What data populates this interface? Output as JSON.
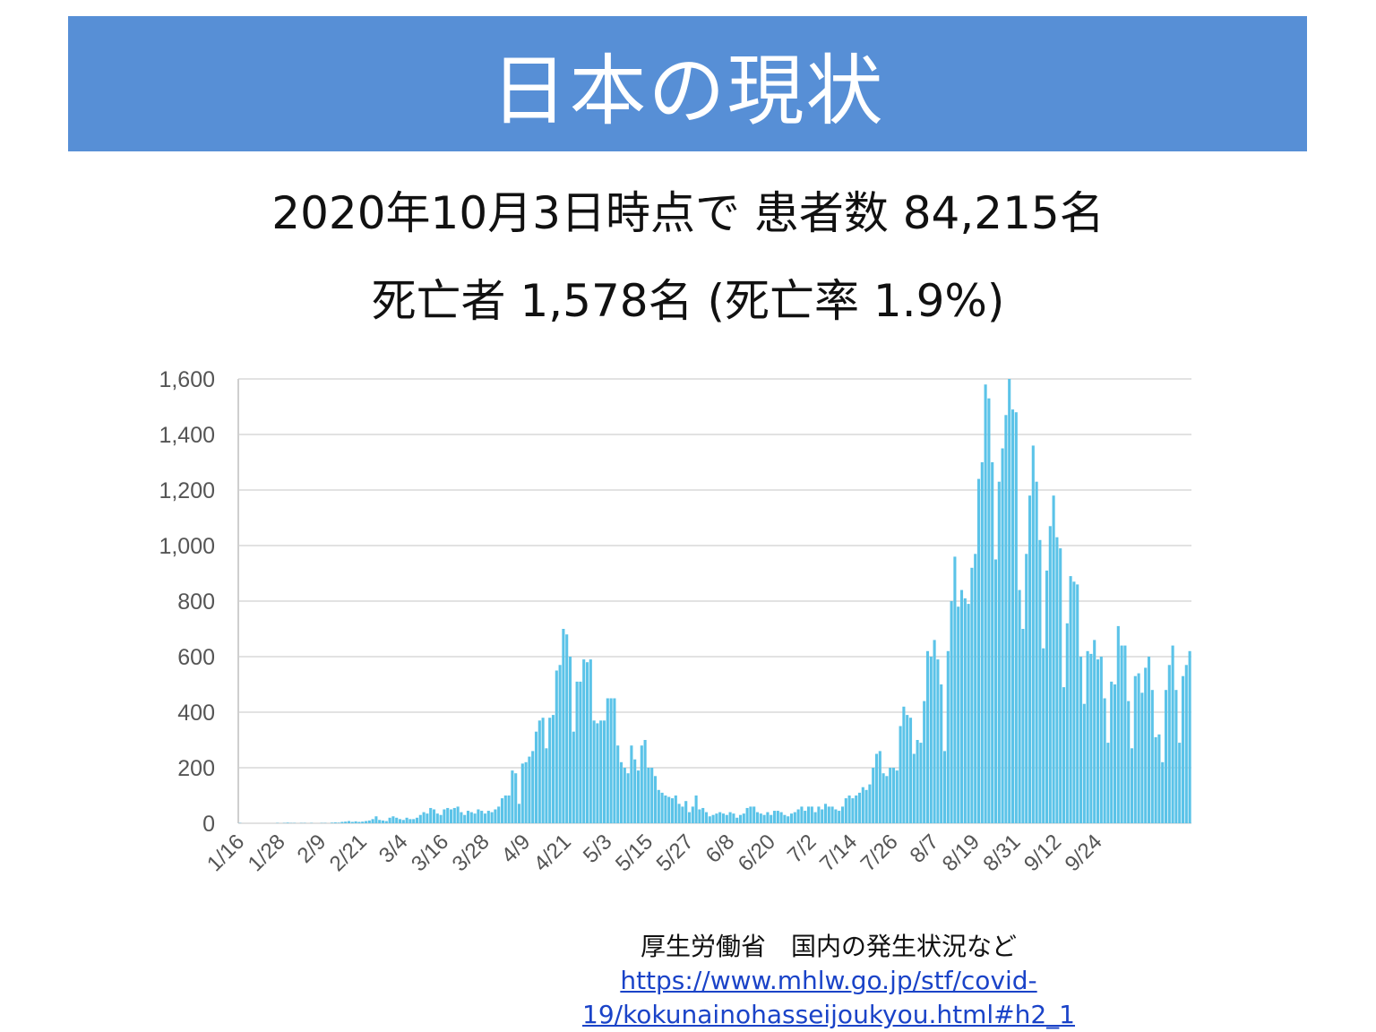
{
  "title": "日本の現状",
  "summary": {
    "line1": "2020年10月3日時点で 患者数 84,215名",
    "line2": "死亡者 1,578名 (死亡率 1.9%)"
  },
  "source": {
    "label": "厚生労働省　国内の発生状況など",
    "url_line1": "https://www.mhlw.go.jp/stf/covid-",
    "url_line2": "19/kokunainohasseijoukyou.html#h2_1"
  },
  "colors": {
    "header_bg": "#578fd6",
    "bar": "#5bc3e8",
    "link": "#1a43c8"
  },
  "chart_data": {
    "type": "bar",
    "title": "",
    "xlabel": "",
    "ylabel": "",
    "ylim": [
      0,
      1600
    ],
    "yticks": [
      0,
      200,
      400,
      600,
      800,
      1000,
      1200,
      1400,
      1600
    ],
    "ytick_labels": [
      "0",
      "200",
      "400",
      "600",
      "800",
      "1,000",
      "1,200",
      "1,400",
      "1,600"
    ],
    "xtick_labels": [
      "1/16",
      "1/28",
      "2/9",
      "2/21",
      "3/4",
      "3/16",
      "3/28",
      "4/9",
      "4/21",
      "5/3",
      "5/15",
      "5/27",
      "6/8",
      "6/20",
      "7/2",
      "7/14",
      "7/26",
      "8/7",
      "8/19",
      "8/31",
      "9/12",
      "9/24"
    ],
    "xtick_every": 12,
    "grid": true,
    "start_date": "1/16",
    "values": [
      1,
      0,
      0,
      0,
      0,
      0,
      0,
      0,
      0,
      0,
      0,
      1,
      0,
      1,
      2,
      1,
      1,
      0,
      1,
      1,
      0,
      1,
      0,
      0,
      1,
      1,
      0,
      2,
      3,
      2,
      5,
      6,
      8,
      5,
      7,
      5,
      6,
      8,
      10,
      15,
      25,
      12,
      10,
      8,
      20,
      25,
      20,
      15,
      12,
      20,
      15,
      15,
      20,
      30,
      40,
      35,
      55,
      50,
      35,
      30,
      50,
      55,
      50,
      55,
      60,
      40,
      30,
      45,
      40,
      35,
      50,
      45,
      35,
      45,
      40,
      50,
      60,
      90,
      100,
      100,
      190,
      180,
      70,
      215,
      220,
      240,
      260,
      330,
      370,
      380,
      270,
      380,
      390,
      550,
      570,
      700,
      680,
      600,
      330,
      510,
      510,
      590,
      580,
      590,
      370,
      360,
      370,
      370,
      450,
      450,
      450,
      280,
      220,
      200,
      180,
      280,
      230,
      190,
      280,
      300,
      200,
      200,
      170,
      120,
      110,
      100,
      95,
      90,
      100,
      70,
      60,
      80,
      40,
      60,
      100,
      50,
      55,
      40,
      25,
      30,
      35,
      40,
      35,
      30,
      40,
      35,
      20,
      30,
      35,
      55,
      60,
      60,
      40,
      35,
      30,
      40,
      30,
      45,
      45,
      40,
      30,
      25,
      35,
      40,
      50,
      60,
      45,
      60,
      60,
      40,
      60,
      50,
      70,
      60,
      60,
      50,
      45,
      60,
      90,
      100,
      90,
      100,
      110,
      130,
      120,
      140,
      200,
      250,
      260,
      180,
      170,
      200,
      200,
      190,
      350,
      420,
      390,
      380,
      250,
      300,
      290,
      440,
      620,
      600,
      660,
      590,
      500,
      260,
      620,
      800,
      960,
      780,
      840,
      810,
      790,
      920,
      970,
      1240,
      1300,
      1580,
      1530,
      1300,
      950,
      1230,
      1350,
      1470,
      1600,
      1490,
      1480,
      840,
      700,
      970,
      1180,
      1360,
      1230,
      1020,
      630,
      910,
      1070,
      1180,
      1030,
      990,
      490,
      720,
      890,
      870,
      860,
      600,
      430,
      620,
      610,
      660,
      590,
      600,
      450,
      290,
      510,
      500,
      710,
      640,
      640,
      440,
      270,
      530,
      540,
      470,
      560,
      600,
      480,
      310,
      320,
      220,
      480,
      570,
      640,
      480,
      290,
      530,
      570,
      620
    ]
  }
}
